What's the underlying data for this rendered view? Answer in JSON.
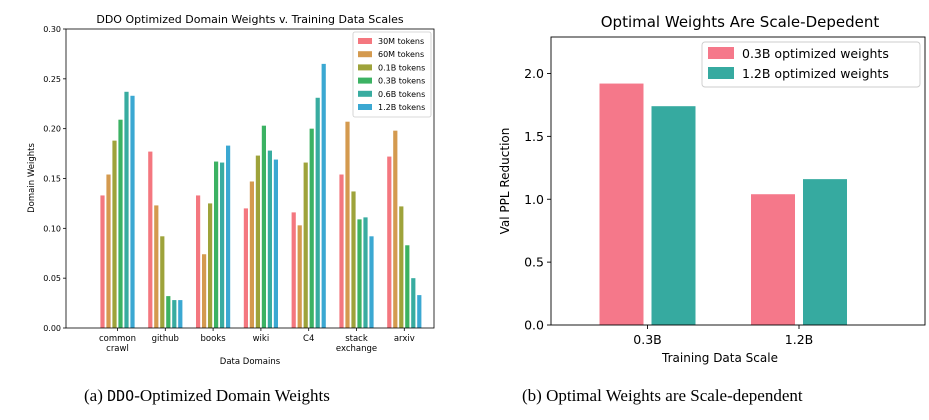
{
  "chart_data": [
    {
      "type": "bar",
      "title": "DDO Optimized Domain Weights v. Training Data Scales",
      "xlabel": "Data Domains",
      "ylabel": "Domain Weights",
      "ylim": [
        0,
        0.3
      ],
      "yticks": [
        "0.00",
        "0.05",
        "0.10",
        "0.15",
        "0.20",
        "0.25",
        "0.30"
      ],
      "categories": [
        [
          "common",
          "crawl"
        ],
        [
          "github"
        ],
        [
          "books"
        ],
        [
          "wiki"
        ],
        [
          "C4"
        ],
        [
          "stack",
          "exchange"
        ],
        [
          "arxiv"
        ]
      ],
      "legend_position": "top-right",
      "grid": false,
      "series": [
        {
          "name": "30M tokens",
          "color": "#f4777f",
          "values": [
            0.133,
            0.177,
            0.133,
            0.12,
            0.116,
            0.154,
            0.172
          ]
        },
        {
          "name": "60M tokens",
          "color": "#d49a4f",
          "values": [
            0.154,
            0.123,
            0.074,
            0.147,
            0.103,
            0.207,
            0.198
          ]
        },
        {
          "name": "0.1B tokens",
          "color": "#9ea33b",
          "values": [
            0.188,
            0.092,
            0.125,
            0.173,
            0.166,
            0.137,
            0.122
          ]
        },
        {
          "name": "0.3B tokens",
          "color": "#3cb263",
          "values": [
            0.209,
            0.032,
            0.167,
            0.203,
            0.2,
            0.109,
            0.083
          ]
        },
        {
          "name": "0.6B tokens",
          "color": "#38aca0",
          "values": [
            0.237,
            0.028,
            0.166,
            0.178,
            0.231,
            0.111,
            0.05
          ]
        },
        {
          "name": "1.2B tokens",
          "color": "#3ba8d2",
          "values": [
            0.233,
            0.028,
            0.183,
            0.169,
            0.265,
            0.092,
            0.033
          ]
        }
      ]
    },
    {
      "type": "bar",
      "title": "Optimal Weights Are Scale-Depedent",
      "xlabel": "Training Data Scale",
      "ylabel": "Val PPL Reduction",
      "ylim": [
        0,
        2.4
      ],
      "yticks": [
        "0.0",
        "0.5",
        "1.0",
        "1.5",
        "2.0"
      ],
      "categories": [
        "0.3B",
        "1.2B"
      ],
      "legend_position": "top-right",
      "grid": false,
      "series": [
        {
          "name": "0.3B optimized weights",
          "color": "#f5788a",
          "values": [
            1.92,
            1.04
          ]
        },
        {
          "name": "1.2B optimized weights",
          "color": "#36aaa0",
          "values": [
            1.74,
            1.16
          ]
        }
      ]
    }
  ],
  "captions": {
    "a_prefix": "(a) ",
    "a_mono": "DDO",
    "a_rest": "-Optimized Domain Weights",
    "b": "(b) Optimal Weights are Scale-dependent"
  }
}
